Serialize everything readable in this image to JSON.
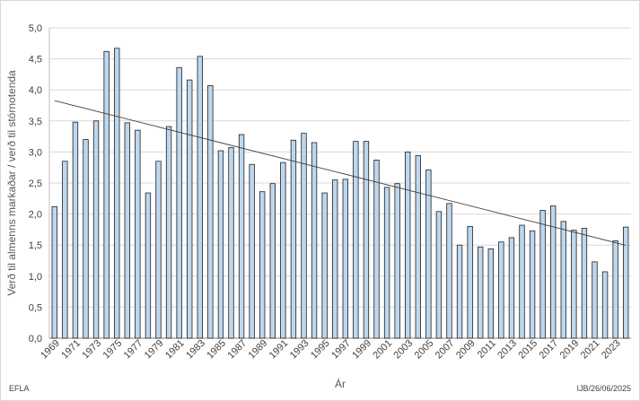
{
  "footer": {
    "left": "EFLA",
    "right": "IJB/26/06/2025"
  },
  "chart_data": {
    "type": "bar",
    "xlabel": "Ár",
    "ylabel": "Verð til almenns markaðar / verð til stórnotenda",
    "ylim": [
      0,
      5
    ],
    "ytick_step": 0.5,
    "grid": true,
    "trendline": true,
    "bar_color": "#bdd7ee",
    "bar_edge": "#1f1f1f",
    "categories": [
      "1969",
      "1970",
      "1971",
      "1972",
      "1973",
      "1974",
      "1975",
      "1976",
      "1977",
      "1978",
      "1979",
      "1980",
      "1981",
      "1982",
      "1983",
      "1984",
      "1985",
      "1986",
      "1987",
      "1988",
      "1989",
      "1990",
      "1991",
      "1992",
      "1993",
      "1994",
      "1995",
      "1996",
      "1997",
      "1998",
      "1999",
      "2000",
      "2001",
      "2002",
      "2003",
      "2004",
      "2005",
      "2006",
      "2007",
      "2008",
      "2009",
      "2010",
      "2011",
      "2012",
      "2013",
      "2014",
      "2015",
      "2016",
      "2017",
      "2018",
      "2019",
      "2020",
      "2021",
      "2022",
      "2023",
      "2024"
    ],
    "tick_labels": [
      "1969",
      "1971",
      "1973",
      "1975",
      "1977",
      "1979",
      "1981",
      "1983",
      "1985",
      "1987",
      "1989",
      "1991",
      "1993",
      "1995",
      "1997",
      "1999",
      "2001",
      "2003",
      "2005",
      "2007",
      "2009",
      "2011",
      "2013",
      "2015",
      "2017",
      "2019",
      "2021",
      "2023"
    ],
    "values": [
      2.12,
      2.85,
      3.48,
      3.2,
      3.5,
      4.62,
      4.67,
      3.47,
      3.35,
      2.34,
      2.85,
      3.41,
      4.36,
      4.16,
      4.54,
      4.07,
      3.02,
      3.07,
      3.28,
      2.8,
      2.36,
      2.49,
      2.83,
      3.19,
      3.3,
      3.15,
      2.34,
      2.55,
      2.56,
      3.17,
      3.17,
      2.87,
      2.43,
      2.49,
      3.0,
      2.94,
      2.71,
      2.04,
      2.17,
      1.5,
      1.8,
      1.47,
      1.44,
      1.55,
      1.62,
      1.82,
      1.73,
      2.06,
      2.13,
      1.88,
      1.74,
      1.77,
      1.23,
      1.07,
      1.57,
      1.79
    ]
  }
}
